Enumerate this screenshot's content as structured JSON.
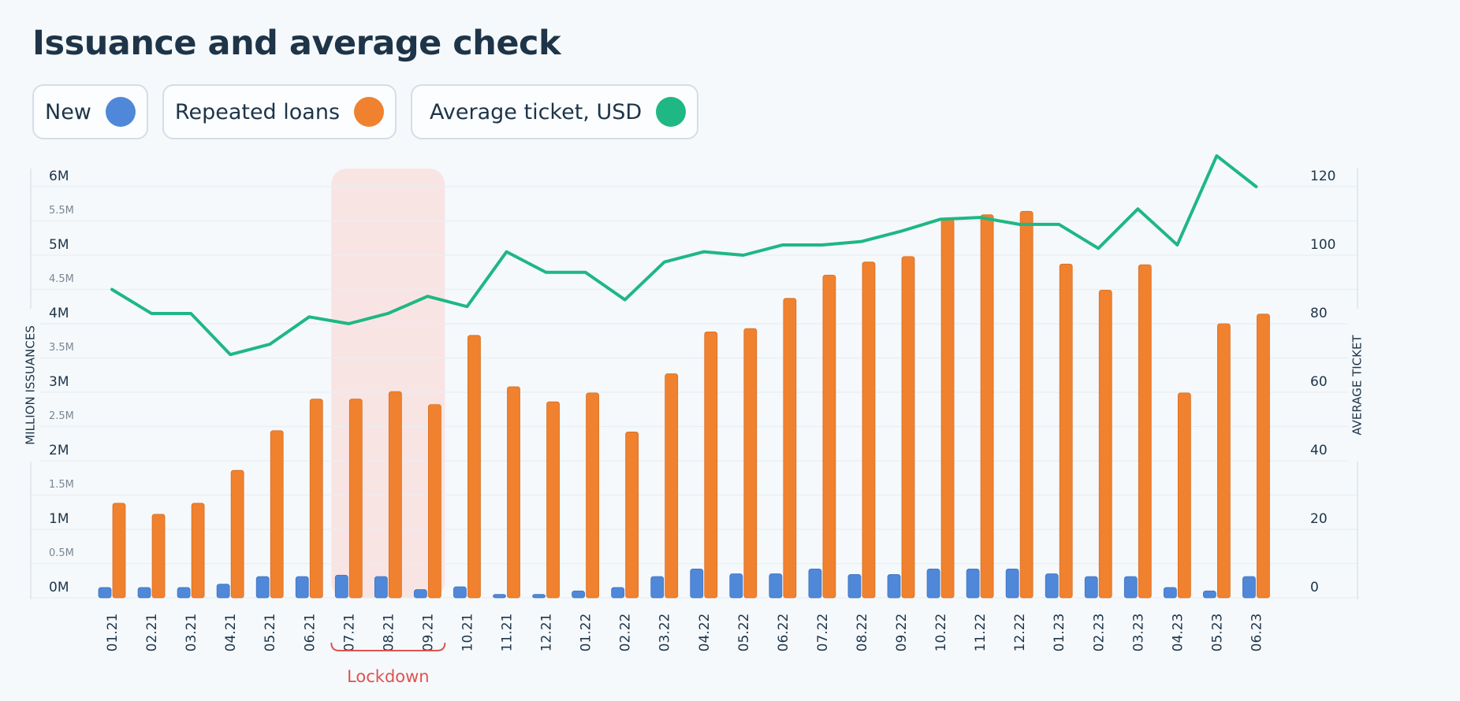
{
  "chart_data": {
    "type": "bar",
    "title": "Issuance and average check",
    "y_label": "MILLION ISSUANCES",
    "y2_label": "AVERAGE TICKET",
    "categories": [
      "01.21",
      "02.21",
      "03.21",
      "04.21",
      "05.21",
      "06.21",
      "07.21",
      "08.21",
      "09.21",
      "10.21",
      "11.21",
      "12.21",
      "01.22",
      "02.22",
      "03.22",
      "04.22",
      "05.22",
      "06.22",
      "07.22",
      "08.22",
      "09.22",
      "10.22",
      "11.22",
      "12.22",
      "01.23",
      "02.23",
      "03.23",
      "04.23",
      "05.23",
      "06.23"
    ],
    "series": [
      {
        "name": "New",
        "type": "bar",
        "color": "#4f88d8",
        "values": [
          0.15,
          0.15,
          0.15,
          0.2,
          0.31,
          0.31,
          0.33,
          0.31,
          0.12,
          0.16,
          0.05,
          0.05,
          0.1,
          0.15,
          0.31,
          0.42,
          0.35,
          0.35,
          0.42,
          0.34,
          0.34,
          0.42,
          0.42,
          0.42,
          0.35,
          0.31,
          0.31,
          0.15,
          0.1,
          0.31
        ]
      },
      {
        "name": "Repeated loans",
        "type": "bar",
        "color": "#f0812f",
        "values": [
          1.38,
          1.22,
          1.38,
          1.86,
          2.44,
          2.9,
          2.9,
          3.01,
          2.82,
          3.83,
          3.08,
          2.86,
          2.99,
          2.42,
          3.27,
          3.88,
          3.93,
          4.37,
          4.71,
          4.9,
          4.98,
          5.52,
          5.59,
          5.64,
          4.87,
          4.49,
          4.86,
          2.99,
          4.0,
          4.14
        ]
      },
      {
        "name": "Average ticket, USD",
        "type": "line",
        "axis": "y2",
        "color": "#1fb784",
        "values": [
          90,
          83,
          83,
          71,
          74,
          82,
          80,
          83,
          88,
          85,
          101,
          95,
          95,
          87,
          98,
          101,
          100,
          103,
          103,
          104,
          107,
          110.5,
          111,
          109,
          109,
          102,
          113.5,
          103,
          129,
          120
        ]
      }
    ],
    "ylim": [
      0,
      6
    ],
    "yticks": [
      {
        "value": 0,
        "label": "0M"
      },
      {
        "value": 0.5,
        "label": "0.5M"
      },
      {
        "value": 1,
        "label": "1M"
      },
      {
        "value": 1.5,
        "label": "1.5M"
      },
      {
        "value": 2,
        "label": "2M"
      },
      {
        "value": 2.5,
        "label": "2.5M"
      },
      {
        "value": 3,
        "label": "3M"
      },
      {
        "value": 3.5,
        "label": "3.5M"
      },
      {
        "value": 4,
        "label": "4M"
      },
      {
        "value": 4.5,
        "label": "4.5M"
      },
      {
        "value": 5,
        "label": "5M"
      },
      {
        "value": 5.5,
        "label": "5.5M"
      },
      {
        "value": 6,
        "label": "6M"
      }
    ],
    "y2lim": [
      0,
      120
    ],
    "y2ticks": [
      0,
      20,
      40,
      60,
      80,
      100,
      120
    ],
    "grid": true,
    "annotation": {
      "text": "Lockdown",
      "start": "07.21",
      "end": "09.21",
      "color": "#e0524f"
    }
  }
}
